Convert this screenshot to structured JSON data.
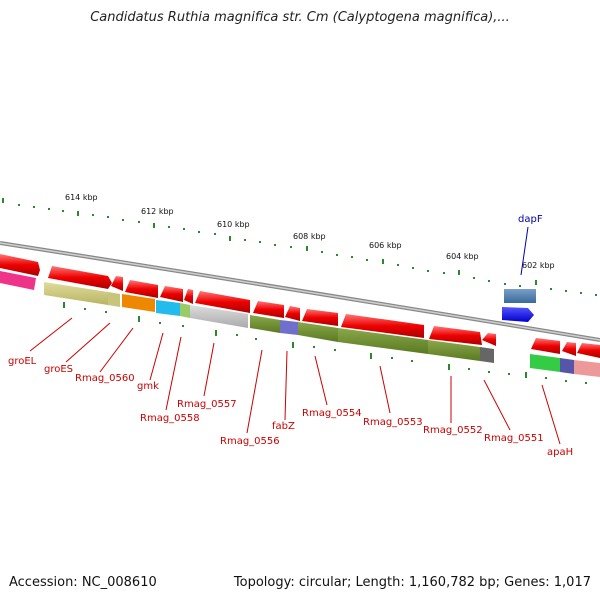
{
  "title": "Candidatus Ruthia magnifica str. Cm (Calyptogena magnifica),...",
  "footer": {
    "accession": "Accession: NC_008610",
    "stats": "Topology: circular; Length: 1,160,782 bp; Genes: 1,017"
  },
  "ticks": [
    "614 kbp",
    "612 kbp",
    "610 kbp",
    "608 kbp",
    "606 kbp",
    "604 kbp",
    "602 kbp"
  ],
  "genes": [
    {
      "name": "groEL",
      "color": "#cc0000"
    },
    {
      "name": "groES",
      "color": "#cc0000"
    },
    {
      "name": "Rmag_0560",
      "color": "#cc0000"
    },
    {
      "name": "gmk",
      "color": "#cc0000"
    },
    {
      "name": "Rmag_0558",
      "color": "#cc0000"
    },
    {
      "name": "Rmag_0557",
      "color": "#cc0000"
    },
    {
      "name": "Rmag_0556",
      "color": "#cc0000"
    },
    {
      "name": "fabZ",
      "color": "#cc0000"
    },
    {
      "name": "Rmag_0554",
      "color": "#cc0000"
    },
    {
      "name": "Rmag_0553",
      "color": "#cc0000"
    },
    {
      "name": "Rmag_0552",
      "color": "#cc0000"
    },
    {
      "name": "Rmag_0551",
      "color": "#cc0000"
    },
    {
      "name": "apaH",
      "color": "#cc0000"
    },
    {
      "name": "dapF",
      "color": "#0000aa"
    }
  ],
  "colors": {
    "backbone": "#888888",
    "forward_gene": "#ee0000",
    "reverse_gene": "#0022ee",
    "tick": "#2a8a2a"
  }
}
